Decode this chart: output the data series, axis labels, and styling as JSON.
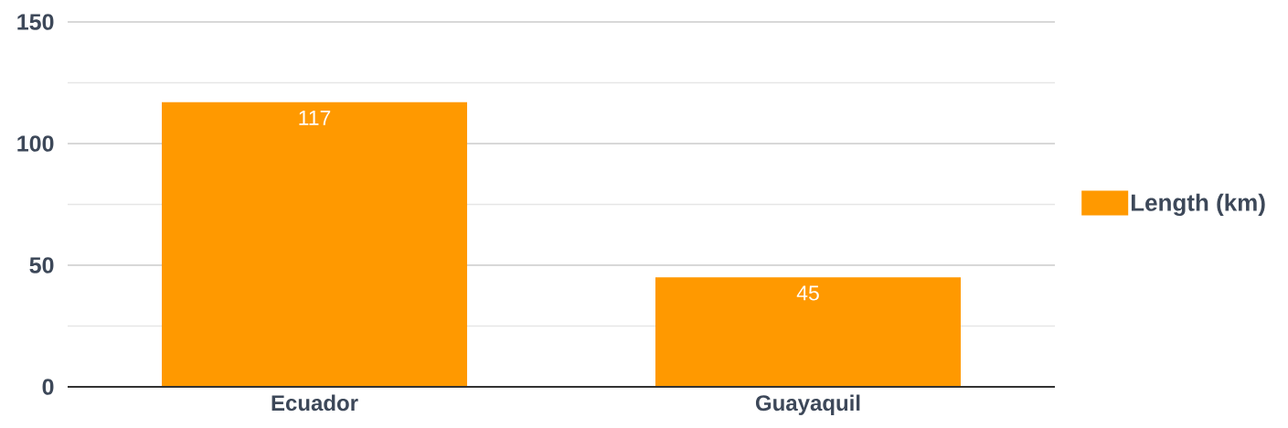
{
  "chart_data": {
    "type": "bar",
    "categories": [
      "Ecuador",
      "Guayaquil"
    ],
    "series": [
      {
        "name": "Length (km)",
        "color": "#ff9900",
        "values": [
          117,
          45
        ]
      }
    ],
    "ylim": [
      0,
      150
    ],
    "yticks": [
      0,
      {
        "value": 25,
        "label": null
      },
      50,
      {
        "value": 75,
        "label": null
      },
      100,
      {
        "value": 125,
        "label": null
      },
      150
    ],
    "grid": "y",
    "legend": "right",
    "data_labels": true
  }
}
